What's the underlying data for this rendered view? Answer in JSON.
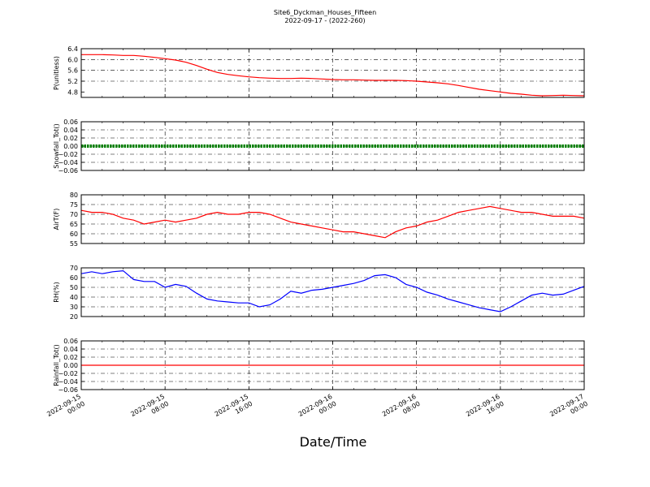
{
  "title": "Site6_Dyckman_Houses_Fifteen",
  "subtitle": "2022-09-17 - (2022-260)",
  "xlabel": "Date/Time",
  "chart_data": {
    "type": "line",
    "x_tick_labels": [
      [
        "2022-09-15",
        "00:00"
      ],
      [
        "2022-09-15",
        "08:00"
      ],
      [
        "2022-09-15",
        "16:00"
      ],
      [
        "2022-09-16",
        "00:00"
      ],
      [
        "2022-09-16",
        "08:00"
      ],
      [
        "2022-09-16",
        "16:00"
      ],
      [
        "2022-09-17",
        "00:00"
      ]
    ],
    "x_range_hours": [
      0,
      48
    ],
    "grid": true,
    "panels": [
      {
        "ylabel": "P(unitless)",
        "ylim": [
          4.6,
          6.4
        ],
        "yticks": [
          4.8,
          5.2,
          5.6,
          6.0,
          6.4
        ],
        "color": "#ff0000",
        "series": {
          "x": [
            0,
            1,
            2,
            3,
            4,
            5,
            6,
            7,
            8,
            9,
            10,
            11,
            12,
            13,
            14,
            15,
            16,
            17,
            18,
            19,
            20,
            21,
            22,
            23,
            24,
            25,
            26,
            27,
            28,
            29,
            30,
            31,
            32,
            33,
            34,
            35,
            36,
            37,
            38,
            39,
            40,
            41,
            42,
            43,
            44,
            45,
            46,
            47,
            48
          ],
          "y": [
            6.18,
            6.18,
            6.18,
            6.17,
            6.15,
            6.15,
            6.12,
            6.08,
            6.03,
            5.98,
            5.9,
            5.78,
            5.64,
            5.52,
            5.45,
            5.4,
            5.36,
            5.33,
            5.31,
            5.3,
            5.3,
            5.31,
            5.3,
            5.28,
            5.26,
            5.25,
            5.25,
            5.24,
            5.23,
            5.23,
            5.23,
            5.22,
            5.2,
            5.17,
            5.14,
            5.1,
            5.04,
            4.97,
            4.9,
            4.85,
            4.8,
            4.75,
            4.72,
            4.68,
            4.66,
            4.67,
            4.68,
            4.67,
            4.66
          ]
        }
      },
      {
        "ylabel": "Snowfall_Tot()",
        "ylim": [
          -0.06,
          0.06
        ],
        "yticks": [
          -0.06,
          -0.04,
          -0.02,
          0.0,
          0.02,
          0.04,
          0.06
        ],
        "color": "#008000",
        "marker": "dots",
        "series": {
          "x": [
            0,
            48
          ],
          "y": [
            0.0,
            0.0
          ]
        }
      },
      {
        "ylabel": "AirT(F)",
        "ylim": [
          55,
          80
        ],
        "yticks": [
          55,
          60,
          65,
          70,
          75,
          80
        ],
        "color": "#ff0000",
        "series": {
          "x": [
            0,
            1,
            2,
            3,
            4,
            5,
            6,
            7,
            8,
            9,
            10,
            11,
            12,
            13,
            14,
            15,
            16,
            17,
            18,
            19,
            20,
            21,
            22,
            23,
            24,
            25,
            26,
            27,
            28,
            29,
            30,
            31,
            32,
            33,
            34,
            35,
            36,
            37,
            38,
            39,
            40,
            41,
            42,
            43,
            44,
            45,
            46,
            47,
            48
          ],
          "y": [
            72,
            71,
            71,
            70,
            68,
            67,
            65,
            66,
            67,
            66,
            67,
            68,
            70,
            71,
            70,
            70,
            71,
            71,
            70,
            68,
            66,
            65,
            64,
            63,
            62,
            61,
            61,
            60,
            59,
            58,
            61,
            63,
            64,
            66,
            67,
            69,
            71,
            72,
            73,
            74,
            73,
            72,
            71,
            71,
            70,
            69,
            69,
            69,
            68
          ]
        }
      },
      {
        "ylabel": "RH(%)",
        "ylim": [
          20,
          70
        ],
        "yticks": [
          20,
          30,
          40,
          50,
          60,
          70
        ],
        "color": "#0000ff",
        "series": {
          "x": [
            0,
            1,
            2,
            3,
            4,
            5,
            6,
            7,
            8,
            9,
            10,
            11,
            12,
            13,
            14,
            15,
            16,
            17,
            18,
            19,
            20,
            21,
            22,
            23,
            24,
            25,
            26,
            27,
            28,
            29,
            30,
            31,
            32,
            33,
            34,
            35,
            36,
            37,
            38,
            39,
            40,
            41,
            42,
            43,
            44,
            45,
            46,
            47,
            48
          ],
          "y": [
            64,
            66,
            64,
            66,
            67,
            58,
            56,
            56,
            50,
            53,
            51,
            44,
            38,
            36,
            35,
            34,
            34,
            30,
            32,
            38,
            46,
            44,
            47,
            48,
            50,
            52,
            54,
            57,
            62,
            63,
            60,
            53,
            50,
            45,
            42,
            38,
            35,
            32,
            29,
            27,
            25,
            30,
            36,
            42,
            44,
            42,
            43,
            47,
            51
          ]
        }
      },
      {
        "ylabel": "Rainfall_Tot()",
        "ylim": [
          -0.06,
          0.06
        ],
        "yticks": [
          -0.06,
          -0.04,
          -0.02,
          0.0,
          0.02,
          0.04,
          0.06
        ],
        "color": "#ff0000",
        "series": {
          "x": [
            0,
            48
          ],
          "y": [
            0.0,
            0.0
          ]
        }
      }
    ]
  }
}
